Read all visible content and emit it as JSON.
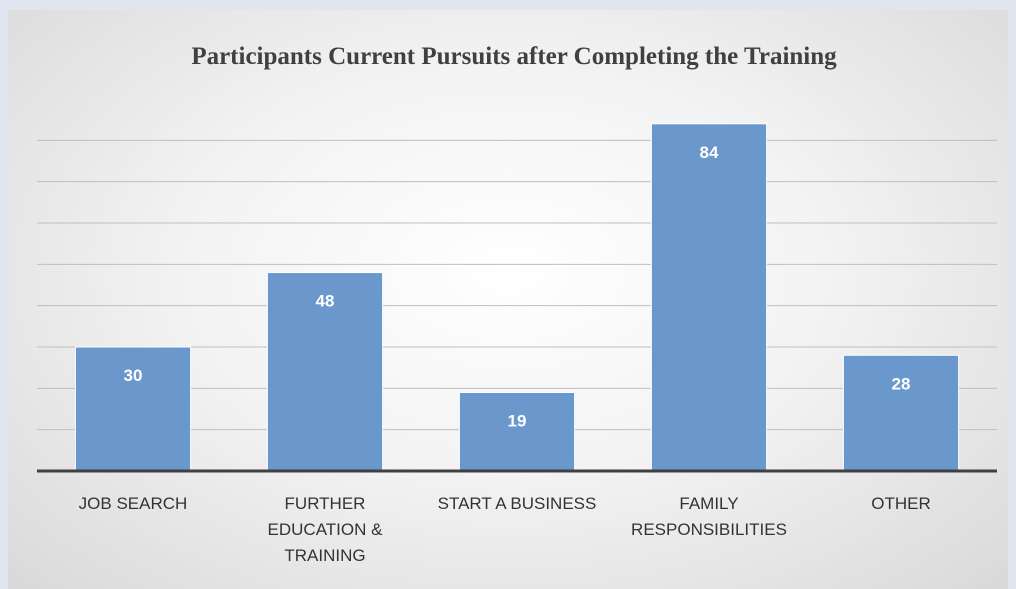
{
  "chart_data": {
    "type": "bar",
    "title": "Participants Current Pursuits after Completing the Training",
    "categories": [
      "JOB SEARCH",
      "FURTHER EDUCATION & TRAINING",
      "START A BUSINESS",
      "FAMILY RESPONSIBILITIES",
      "OTHER"
    ],
    "values": [
      30,
      48,
      19,
      84,
      28
    ],
    "color": "#6a97cc",
    "ylim": [
      0,
      90
    ],
    "yticks": [
      0,
      10,
      20,
      30,
      40,
      50,
      60,
      70,
      80
    ],
    "grid": true
  }
}
